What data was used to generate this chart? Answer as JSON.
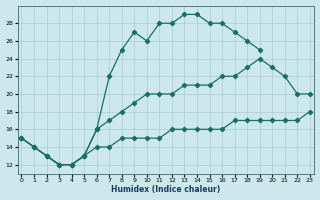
{
  "xlabel": "Humidex (Indice chaleur)",
  "bg_color": "#cce8ec",
  "grid_color": "#aacccc",
  "line_color": "#1a6e68",
  "xlim_min": -0.3,
  "xlim_max": 23.3,
  "ylim_min": 11,
  "ylim_max": 30,
  "xticks": [
    0,
    1,
    2,
    3,
    4,
    5,
    6,
    7,
    8,
    9,
    10,
    11,
    12,
    13,
    14,
    15,
    16,
    17,
    18,
    19,
    20,
    21,
    22,
    23
  ],
  "yticks": [
    12,
    14,
    16,
    18,
    20,
    22,
    24,
    26,
    28
  ],
  "line1_x": [
    0,
    1,
    2,
    3,
    4,
    5,
    6,
    7,
    8,
    9,
    10,
    11,
    12,
    13,
    14,
    15,
    16,
    17,
    18,
    19
  ],
  "line1_y": [
    15,
    14,
    13,
    12,
    12,
    13,
    16,
    22,
    25,
    27,
    26,
    28,
    28,
    29,
    29,
    28,
    28,
    27,
    26,
    25
  ],
  "line2_x": [
    0,
    1,
    2,
    3,
    4,
    5,
    6,
    7,
    8,
    9,
    10,
    11,
    12,
    13,
    14,
    15,
    16,
    17,
    18,
    19,
    20,
    21,
    22,
    23
  ],
  "line2_y": [
    15,
    14,
    13,
    12,
    12,
    13,
    16,
    17,
    18,
    19,
    20,
    20,
    20,
    21,
    21,
    21,
    22,
    22,
    23,
    24,
    23,
    22,
    20,
    20
  ],
  "line3_x": [
    0,
    1,
    2,
    3,
    4,
    5,
    6,
    7,
    8,
    9,
    10,
    11,
    12,
    13,
    14,
    15,
    16,
    17,
    18,
    19,
    20,
    21,
    22,
    23
  ],
  "line3_y": [
    15,
    14,
    13,
    12,
    12,
    13,
    14,
    14,
    15,
    15,
    15,
    15,
    16,
    16,
    16,
    16,
    16,
    17,
    17,
    17,
    17,
    17,
    17,
    18
  ]
}
